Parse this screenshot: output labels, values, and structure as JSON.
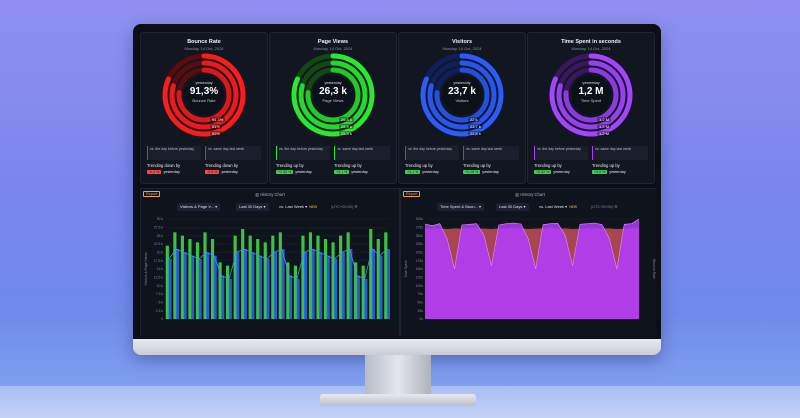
{
  "cards": [
    {
      "title": "Bounce Rate",
      "date": "Monday, 14 Oct, 2024",
      "center_label": "yesterday",
      "value": "91,3%",
      "sub": "Bounce Rate",
      "pills": [
        "91,3%",
        "51%",
        "52%"
      ],
      "cmp_left": "vs. the day before yesterday",
      "cmp_right": "vs. same day last week",
      "trend_left": "Trending down by",
      "trend_right": "Trending down by",
      "chip_left": "-0,3 %",
      "chip_right": "-0,5 %",
      "suffix": "yesterday",
      "color": "#ff1b1b",
      "dark": "#5a0c0c"
    },
    {
      "title": "Page Views",
      "date": "Monday, 14 Oct, 2024",
      "center_label": "yesterday",
      "value": "26,3 k",
      "sub": "Page Views",
      "pills": [
        "26,5 k",
        "25,9 k",
        "25,3 k"
      ],
      "cmp_left": "vs. the day before yesterday",
      "cmp_right": "vs. same day last week",
      "trend_left": "Trending up by",
      "trend_right": "Trending up by",
      "chip_left": "+2,55 %",
      "chip_right": "+4,1 %",
      "suffix": "yesterday",
      "color": "#29e82f",
      "dark": "#0e4a12"
    },
    {
      "title": "Visitors",
      "date": "Monday, 14 Oct, 2024",
      "center_label": "yesterday",
      "value": "23,7 k",
      "sub": "Visitors",
      "pills": [
        "22 k",
        "23,7 k",
        "22,8 k"
      ],
      "cmp_left": "vs. the day before yesterday",
      "cmp_right": "vs. same day last week",
      "trend_left": "Trending up by",
      "trend_right": "Trending up by",
      "chip_left": "+4,1 %",
      "chip_right": "+2,28 %",
      "suffix": "yesterday",
      "color": "#2a5cff",
      "dark": "#101f5c"
    },
    {
      "title": "Time Spent in seconds",
      "date": "Monday, 14 Oct, 2024",
      "center_label": "yesterday",
      "value": "1,2 M",
      "sub": "Time Spent",
      "pills": [
        "1,2 M",
        "1,2 M",
        "1,2 M"
      ],
      "cmp_left": "vs. the day before yesterday",
      "cmp_right": "vs. same day last week",
      "trend_left": "Trending up by",
      "trend_right": "Trending up by",
      "chip_left": "+2,52 %",
      "chip_right": "+3,5 %",
      "suffix": "yesterday",
      "color": "#a345ff",
      "dark": "#3a1660"
    }
  ],
  "panels": [
    {
      "report": "Report",
      "title": "History Chart",
      "select": "Visitors & Page V...",
      "range": "Last 30 Days",
      "compare": "vs. Last Week",
      "new": "NEW",
      "tz": "(UTC+00:00)",
      "y_label": "Visitors & Page Views",
      "series_colors": [
        "#3fd64a",
        "#2f6fff"
      ]
    },
    {
      "report": "Report",
      "title": "History Chart",
      "select": "Time Spent & Boun...",
      "range": "Last 30 Days",
      "compare": "vs. Last Week",
      "new": "NEW",
      "tz": "(UTC+00:00)",
      "y_label": "Time Spent",
      "y2_label": "Bounce Rate",
      "series_colors": [
        "#b23cff",
        "#ff5a5a"
      ]
    }
  ],
  "chart_data": [
    {
      "type": "bar",
      "title": "History Chart",
      "ylim": [
        0,
        30000
      ],
      "yticks": [
        "0",
        "2.5 k",
        "5 k",
        "7.5 k",
        "10 k",
        "12.5 k",
        "15 k",
        "17.5 k",
        "20 k",
        "22.5 k",
        "25 k",
        "27.5 k",
        "30 k"
      ],
      "series": [
        {
          "name": "",
          "values": [
            22,
            26,
            25,
            24,
            23,
            26,
            24,
            17,
            16,
            25,
            27,
            25,
            24,
            23,
            25,
            26,
            17,
            16,
            25,
            26,
            25,
            24,
            23,
            25,
            26,
            17,
            16,
            27,
            24,
            26
          ]
        },
        {
          "name": "",
          "values": [
            18,
            21,
            20,
            19,
            18,
            20,
            19,
            13,
            12,
            20,
            21,
            20,
            19,
            18,
            20,
            21,
            13,
            12,
            20,
            21,
            20,
            19,
            18,
            20,
            21,
            13,
            12,
            21,
            19,
            21
          ]
        }
      ]
    },
    {
      "type": "area",
      "title": "History Chart",
      "ylim": [
        0,
        300
      ],
      "yticks": [
        "0s",
        "25s",
        "50s",
        "75s",
        "100s",
        "125s",
        "150s",
        "175s",
        "200s",
        "225s",
        "250s",
        "275s",
        "300s"
      ],
      "series": [
        {
          "name": "",
          "values": [
            285,
            280,
            286,
            240,
            150,
            282,
            284,
            286,
            250,
            160,
            282,
            286,
            288,
            285,
            240,
            150,
            283,
            286,
            287,
            250,
            160,
            284,
            286,
            288,
            283,
            240,
            150,
            284,
            286,
            300
          ]
        },
        {
          "name": "",
          "values": [
            270,
            272,
            271,
            270,
            272,
            271,
            273,
            272,
            271,
            270,
            272,
            271,
            273,
            272,
            270,
            271,
            272,
            273,
            271,
            272,
            270,
            271,
            273,
            272,
            271,
            272,
            270,
            271,
            272,
            273
          ]
        }
      ]
    }
  ]
}
